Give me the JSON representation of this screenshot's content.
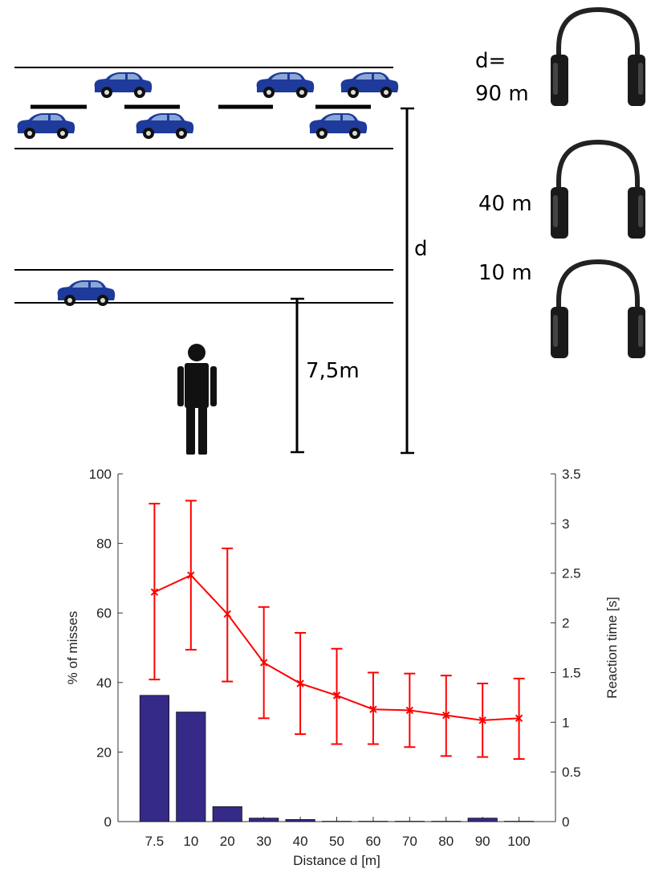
{
  "scene": {
    "d_label": "d",
    "near_lane_distance": "7,5m",
    "headphone_labels": [
      "d=",
      "90 m",
      "40 m",
      "10 m"
    ]
  },
  "chart_data": {
    "type": "bar",
    "categories": [
      "7.5",
      "10",
      "20",
      "30",
      "40",
      "50",
      "60",
      "70",
      "80",
      "90",
      "100"
    ],
    "xlabel": "Distance d [m]",
    "ylabel": "% of misses",
    "ylabel_right": "Reaction time [s]",
    "ylim": [
      0,
      100
    ],
    "ylim_right": [
      0,
      3.5
    ],
    "yticks": [
      "0",
      "20",
      "40",
      "60",
      "80",
      "100"
    ],
    "yticks_right": [
      "0",
      "0.5",
      "1",
      "1.5",
      "2",
      "2.5",
      "3",
      "3.5"
    ],
    "series": [
      {
        "type": "bar",
        "axis": "left",
        "color": "#352a87",
        "values": [
          36.3,
          31.5,
          4.3,
          1.0,
          0.6,
          0.1,
          0.1,
          0.1,
          0.1,
          1.0,
          0.1
        ]
      },
      {
        "type": "line",
        "axis": "right",
        "color": "#ff0000",
        "marker": "x",
        "values": [
          2.31,
          2.48,
          2.09,
          1.6,
          1.39,
          1.27,
          1.13,
          1.12,
          1.07,
          1.02,
          1.04
        ],
        "error_low": [
          1.43,
          1.73,
          1.41,
          1.04,
          0.88,
          0.78,
          0.78,
          0.75,
          0.66,
          0.65,
          0.63
        ],
        "error_high": [
          3.2,
          3.23,
          2.75,
          2.16,
          1.9,
          1.74,
          1.5,
          1.49,
          1.47,
          1.39,
          1.44
        ]
      }
    ]
  }
}
